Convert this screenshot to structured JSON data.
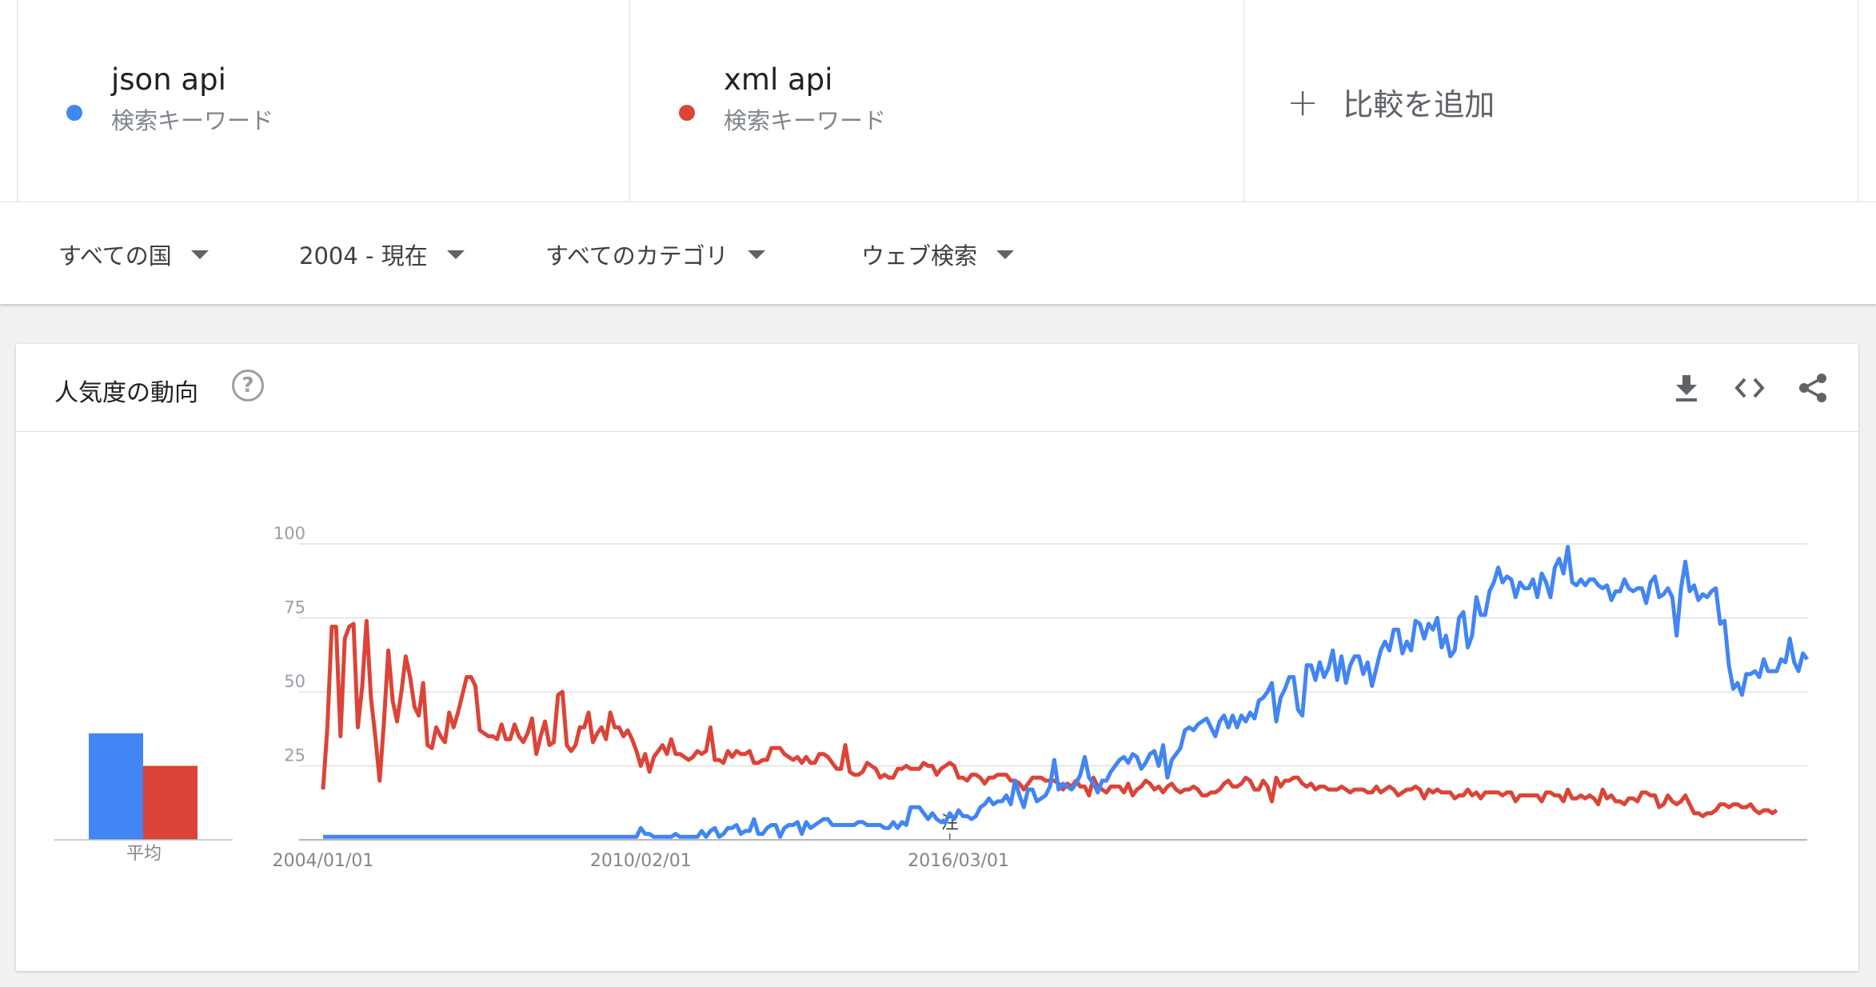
{
  "terms": [
    {
      "title": "json api",
      "subtitle": "検索キーワード",
      "color": "#4285f4"
    },
    {
      "title": "xml api",
      "subtitle": "検索キーワード",
      "color": "#db4437"
    }
  ],
  "add_compare": {
    "icon": "plus-icon",
    "label": "比較を追加"
  },
  "filters": {
    "region": "すべての国",
    "period": "2004 - 現在",
    "category": "すべてのカテゴリ",
    "search_type": "ウェブ検索"
  },
  "card": {
    "title": "人気度の動向",
    "help_symbol": "?",
    "icons": [
      "download-icon",
      "embed-code-icon",
      "share-icon"
    ]
  },
  "chart_data": {
    "type": "line",
    "title": "",
    "xlabel": "",
    "ylabel": "",
    "ylim": [
      0,
      100
    ],
    "yticks": [
      25,
      50,
      75,
      100
    ],
    "xtick_labels": [
      "2004/01/01",
      "2010/02/01",
      "2016/03/01"
    ],
    "annotation": "注",
    "average_label": "平均",
    "averages": [
      36,
      25
    ],
    "grid": true,
    "series": [
      {
        "name": "json api",
        "color": "#4285f4",
        "values": [
          1,
          1,
          1,
          1,
          1,
          1,
          1,
          1,
          1,
          1,
          1,
          1,
          1,
          1,
          1,
          1,
          1,
          1,
          1,
          1,
          1,
          1,
          1,
          1,
          1,
          1,
          1,
          1,
          1,
          1,
          1,
          1,
          1,
          1,
          1,
          1,
          1,
          1,
          1,
          1,
          1,
          1,
          1,
          1,
          1,
          1,
          1,
          1,
          1,
          1,
          1,
          1,
          1,
          1,
          1,
          1,
          1,
          1,
          1,
          1,
          1,
          1,
          1,
          1,
          1,
          1,
          1,
          1,
          1,
          1,
          1,
          1,
          1,
          4,
          2,
          2,
          1,
          1,
          1,
          1,
          1,
          2,
          1,
          1,
          1,
          1,
          1,
          3,
          1,
          3,
          4,
          1,
          2,
          4,
          4,
          5,
          2,
          3,
          3,
          7,
          2,
          2,
          4,
          5,
          5,
          1,
          4,
          5,
          5,
          6,
          2,
          6,
          4,
          5,
          6,
          7,
          7,
          5,
          5,
          5,
          5,
          5,
          5,
          6,
          6,
          5,
          5,
          5,
          5,
          4,
          4,
          6,
          4,
          6,
          5,
          11,
          11,
          11,
          9,
          7,
          9,
          7,
          6,
          6,
          9,
          7,
          10,
          8,
          8,
          7,
          8,
          11,
          12,
          14,
          12,
          13,
          13,
          15,
          12,
          20,
          15,
          11,
          17,
          17,
          13,
          14,
          15,
          18,
          27,
          17,
          19,
          18,
          17,
          19,
          22,
          28,
          21,
          19,
          16,
          20,
          20,
          23,
          25,
          27,
          28,
          26,
          29,
          28,
          24,
          26,
          29,
          30,
          25,
          32,
          21,
          27,
          29,
          31,
          37,
          38,
          37,
          39,
          40,
          41,
          38,
          35,
          40,
          42,
          38,
          42,
          38,
          42,
          40,
          43,
          41,
          47,
          48,
          50,
          53,
          40,
          48,
          51,
          55,
          55,
          44,
          42,
          59,
          59,
          54,
          60,
          55,
          58,
          64,
          54,
          62,
          53,
          59,
          62,
          62,
          56,
          60,
          52,
          58,
          64,
          67,
          64,
          71,
          71,
          63,
          67,
          64,
          74,
          73,
          68,
          73,
          71,
          75,
          65,
          69,
          62,
          64,
          75,
          77,
          65,
          69,
          82,
          76,
          76,
          84,
          87,
          92,
          87,
          89,
          88,
          82,
          87,
          85,
          85,
          88,
          82,
          90,
          87,
          82,
          92,
          95,
          90,
          99,
          87,
          86,
          88,
          86,
          88,
          88,
          86,
          85,
          86,
          81,
          84,
          84,
          88,
          85,
          84,
          85,
          85,
          80,
          87,
          89,
          82,
          83,
          85,
          82,
          69,
          85,
          94,
          84,
          86,
          81,
          83,
          82,
          84,
          85,
          73,
          74,
          59,
          51,
          53,
          49,
          56,
          56,
          57,
          55,
          61,
          57,
          57,
          57,
          61,
          60,
          68,
          60,
          57,
          63,
          61
        ]
      },
      {
        "name": "xml api",
        "color": "#db4437",
        "values": [
          17,
          38,
          72,
          72,
          35,
          68,
          72,
          73,
          38,
          52,
          74,
          48,
          35,
          20,
          40,
          64,
          47,
          40,
          50,
          62,
          55,
          45,
          42,
          53,
          32,
          31,
          38,
          35,
          33,
          43,
          38,
          43,
          49,
          55,
          55,
          52,
          37,
          36,
          35,
          35,
          34,
          39,
          34,
          34,
          39,
          35,
          33,
          36,
          41,
          29,
          35,
          40,
          32,
          33,
          49,
          50,
          32,
          30,
          32,
          38,
          38,
          43,
          33,
          36,
          38,
          34,
          43,
          38,
          38,
          35,
          37,
          34,
          30,
          25,
          29,
          23,
          28,
          30,
          32,
          29,
          34,
          29,
          29,
          28,
          27,
          28,
          30,
          29,
          30,
          38,
          27,
          27,
          26,
          30,
          28,
          30,
          29,
          29,
          30,
          26,
          26,
          27,
          27,
          31,
          31,
          31,
          29,
          28,
          27,
          28,
          26,
          28,
          26,
          26,
          29,
          29,
          28,
          26,
          24,
          24,
          32,
          23,
          22,
          22,
          23,
          26,
          25,
          24,
          21,
          22,
          21,
          21,
          24,
          24,
          25,
          24,
          24,
          24,
          26,
          25,
          25,
          22,
          24,
          25,
          26,
          25,
          21,
          21,
          20,
          22,
          22,
          21,
          19,
          21,
          21,
          22,
          22,
          22,
          20,
          20,
          19,
          17,
          19,
          21,
          21,
          21,
          20,
          20,
          20,
          19,
          17,
          19,
          18,
          20,
          18,
          18,
          15,
          21,
          18,
          17,
          16,
          18,
          18,
          18,
          16,
          19,
          15,
          17,
          18,
          20,
          19,
          17,
          18,
          16,
          18,
          19,
          17,
          16,
          17,
          17,
          18,
          17,
          15,
          15,
          16,
          16,
          17,
          19,
          20,
          18,
          18,
          19,
          21,
          20,
          17,
          17,
          20,
          18,
          13,
          21,
          18,
          20,
          20,
          21,
          21,
          19,
          18,
          19,
          17,
          18,
          18,
          17,
          17,
          17,
          18,
          17,
          16,
          17,
          17,
          17,
          16,
          16,
          18,
          16,
          17,
          18,
          17,
          15,
          16,
          17,
          17,
          18,
          17,
          14,
          17,
          16,
          17,
          16,
          16,
          16,
          14,
          15,
          15,
          17,
          15,
          16,
          14,
          16,
          16,
          16,
          16,
          15,
          16,
          16,
          13,
          15,
          15,
          15,
          15,
          15,
          13,
          16,
          16,
          15,
          15,
          13,
          17,
          14,
          14,
          15,
          14,
          15,
          14,
          12,
          17,
          14,
          15,
          13,
          13,
          12,
          14,
          14,
          13,
          16,
          16,
          15,
          15,
          11,
          12,
          15,
          13,
          12,
          13,
          15,
          12,
          9,
          9,
          8,
          9,
          9,
          10,
          12,
          12,
          11,
          12,
          12,
          11,
          11,
          12,
          10,
          9,
          10,
          10,
          9,
          10
        ]
      }
    ]
  }
}
